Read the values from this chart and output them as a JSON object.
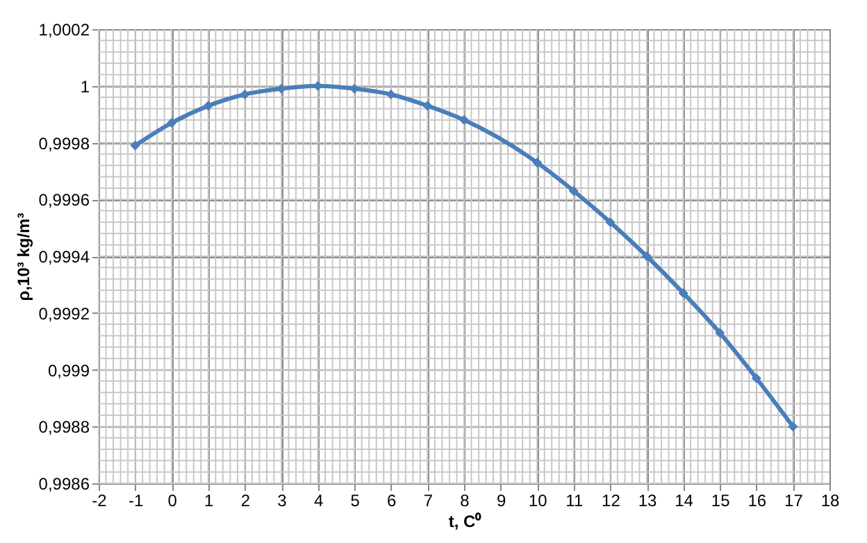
{
  "chart_data": {
    "type": "line",
    "xlabel": "t, C⁰",
    "ylabel": "ρ,10³ kg/m³",
    "x": [
      -1,
      0,
      1,
      2,
      3,
      4,
      5,
      6,
      7,
      8,
      10,
      11,
      12,
      13,
      14,
      15,
      16,
      17
    ],
    "series": [
      {
        "color": "#4a7ebb",
        "values": [
          0.99979,
          0.99987,
          0.99993,
          0.99997,
          0.99999,
          1.0,
          0.99999,
          0.99997,
          0.99993,
          0.99988,
          0.99973,
          0.99963,
          0.99952,
          0.9994,
          0.99927,
          0.99913,
          0.99897,
          0.9988
        ]
      }
    ],
    "xlim": [
      -2,
      18
    ],
    "xticks": [
      -2,
      -1,
      0,
      1,
      2,
      3,
      4,
      5,
      6,
      7,
      8,
      9,
      10,
      11,
      12,
      13,
      14,
      15,
      16,
      17,
      18
    ],
    "ylim": [
      0.9986,
      1.0002
    ],
    "yticks": [
      {
        "value": 0.9986,
        "label": "0,9986"
      },
      {
        "value": 0.9988,
        "label": "0,9988"
      },
      {
        "value": 0.999,
        "label": "0,999"
      },
      {
        "value": 0.9992,
        "label": "0,9992"
      },
      {
        "value": 0.9994,
        "label": "0,9994"
      },
      {
        "value": 0.9996,
        "label": "0,9996"
      },
      {
        "value": 0.9998,
        "label": "0,9998"
      },
      1,
      {
        "value": 1.0002,
        "label": "1,0002"
      }
    ],
    "grid": true,
    "marker": "diamond",
    "line_style": "solid"
  }
}
